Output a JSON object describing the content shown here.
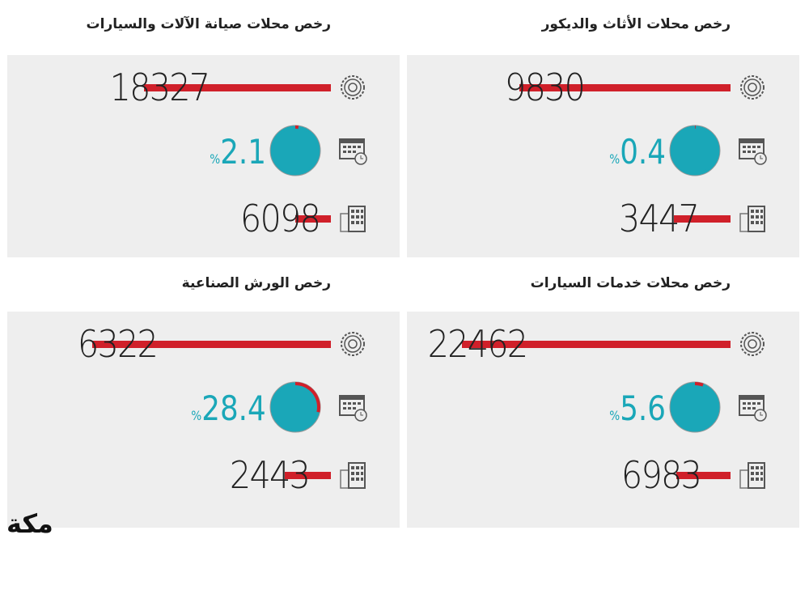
{
  "panels": [
    {
      "title": "رخص محلات صيانة الآلات والسيارات",
      "licenses": 18327,
      "percent": "2.1",
      "percent_value": 2.1,
      "percent_sign": "%",
      "buildings": 6098,
      "licenses_bar_fraction": 0.69,
      "buildings_bar_fraction": 0.13
    },
    {
      "title": "رخص محلات الأثاث والديكور",
      "licenses": 9830,
      "percent": "0.4",
      "percent_value": 0.4,
      "percent_sign": "%",
      "buildings": 3447,
      "licenses_bar_fraction": 0.78,
      "buildings_bar_fraction": 0.21
    },
    {
      "title": "رخص الورش الصناعية",
      "licenses": 6322,
      "percent": "28.4",
      "percent_value": 28.4,
      "percent_sign": "%",
      "buildings": 2443,
      "licenses_bar_fraction": 0.88,
      "buildings_bar_fraction": 0.17
    },
    {
      "title": "رخص محلات خدمات السيارات",
      "licenses": 22462,
      "percent": "5.6",
      "percent_value": 5.6,
      "percent_sign": "%",
      "buildings": 6983,
      "licenses_bar_fraction": 0.99,
      "buildings_bar_fraction": 0.2
    }
  ],
  "logo": "مكة",
  "colors": {
    "bar": "#d0202a",
    "pie": "#1aa7b8",
    "panel": "#eeeeee"
  }
}
